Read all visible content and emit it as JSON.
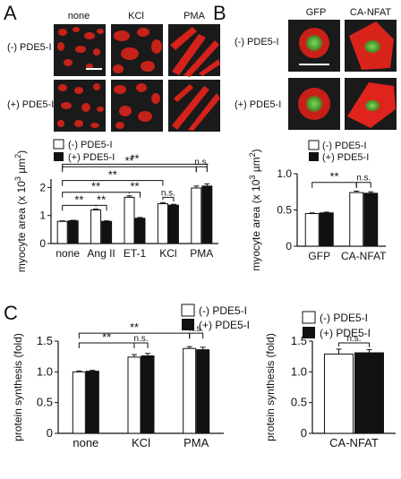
{
  "panel_labels": [
    "A",
    "B",
    "C"
  ],
  "micrographs": {
    "A": {
      "columns": [
        "none",
        "KCl",
        "PMA"
      ],
      "rows": [
        "(-) PDE5-I",
        "(+) PDE5-I"
      ]
    },
    "B": {
      "columns": [
        "GFP",
        "CA-NFAT"
      ],
      "rows": [
        "(-) PDE5-I",
        "(+) PDE5-I"
      ]
    }
  },
  "legend": {
    "open": "(-) PDE5-I",
    "filled": "(+) PDE5-I"
  },
  "colors": {
    "open_bar": "#ffffff",
    "filled_bar": "#111111",
    "image_bg": "#1a1a1a",
    "actin_red": "#e0231c",
    "gfp_green": "#5fbf3a"
  },
  "chart_data": [
    {
      "id": "A",
      "type": "bar",
      "ylabel_main": "myocyte area (x 10",
      "ylabel_sup": "3",
      "ylabel_unit": " µm",
      "ylabel_sup2": "2",
      "ylabel_end": ")",
      "ylim": [
        0,
        2.3
      ],
      "yticks": [
        "0",
        "1",
        "2"
      ],
      "categories": [
        "none",
        "Ang II",
        "ET-1",
        "KCl",
        "PMA"
      ],
      "series": [
        {
          "name": "(-) PDE5-I",
          "values": [
            0.79,
            1.2,
            1.65,
            1.42,
            1.98
          ],
          "errors": [
            0.02,
            0.03,
            0.05,
            0.04,
            0.07
          ]
        },
        {
          "name": "(+) PDE5-I",
          "values": [
            0.81,
            0.79,
            0.9,
            1.37,
            2.05
          ],
          "errors": [
            0.02,
            0.02,
            0.03,
            0.03,
            0.08
          ]
        }
      ],
      "annotations": [
        "**",
        "**",
        "**",
        "**",
        "**",
        "n.s.",
        "**",
        "**",
        "n.s."
      ]
    },
    {
      "id": "B",
      "type": "bar",
      "ylabel_main": "myocyte area (x 10",
      "ylabel_sup": "3",
      "ylabel_unit": " µm",
      "ylabel_sup2": "2",
      "ylabel_end": ")",
      "ylim": [
        0,
        1.0
      ],
      "yticks": [
        "0",
        "0.5",
        "1.0"
      ],
      "categories": [
        "GFP",
        "CA-NFAT"
      ],
      "series": [
        {
          "name": "(-) PDE5-I",
          "values": [
            0.45,
            0.74
          ],
          "errors": [
            0.01,
            0.02
          ]
        },
        {
          "name": "(+) PDE5-I",
          "values": [
            0.46,
            0.73
          ],
          "errors": [
            0.01,
            0.02
          ]
        }
      ],
      "annotations": [
        "**",
        "n.s."
      ]
    },
    {
      "id": "C1",
      "type": "bar",
      "ylabel": "protein synthesis (fold)",
      "ylim": [
        0,
        1.5
      ],
      "yticks": [
        "0",
        "0.5",
        "1.0",
        "1.5"
      ],
      "categories": [
        "none",
        "KCl",
        "PMA"
      ],
      "series": [
        {
          "name": "(-) PDE5-I",
          "values": [
            1.0,
            1.24,
            1.38
          ],
          "errors": [
            0.015,
            0.04,
            0.03
          ]
        },
        {
          "name": "(+) PDE5-I",
          "values": [
            1.01,
            1.26,
            1.36
          ],
          "errors": [
            0.015,
            0.04,
            0.04
          ]
        }
      ],
      "annotations": [
        "**",
        "n.s.",
        "**",
        "n.s."
      ]
    },
    {
      "id": "C2",
      "type": "bar",
      "ylabel": "protein synthesis (fold)",
      "ylim": [
        0,
        1.5
      ],
      "yticks": [
        "0",
        "0.5",
        "1.0",
        "1.5"
      ],
      "categories": [
        "CA-NFAT"
      ],
      "series": [
        {
          "name": "(-) PDE5-I",
          "values": [
            1.29
          ],
          "errors": [
            0.08
          ]
        },
        {
          "name": "(+) PDE5-I",
          "values": [
            1.31
          ],
          "errors": [
            0.05
          ]
        }
      ],
      "annotations": [
        "n.s."
      ]
    }
  ]
}
